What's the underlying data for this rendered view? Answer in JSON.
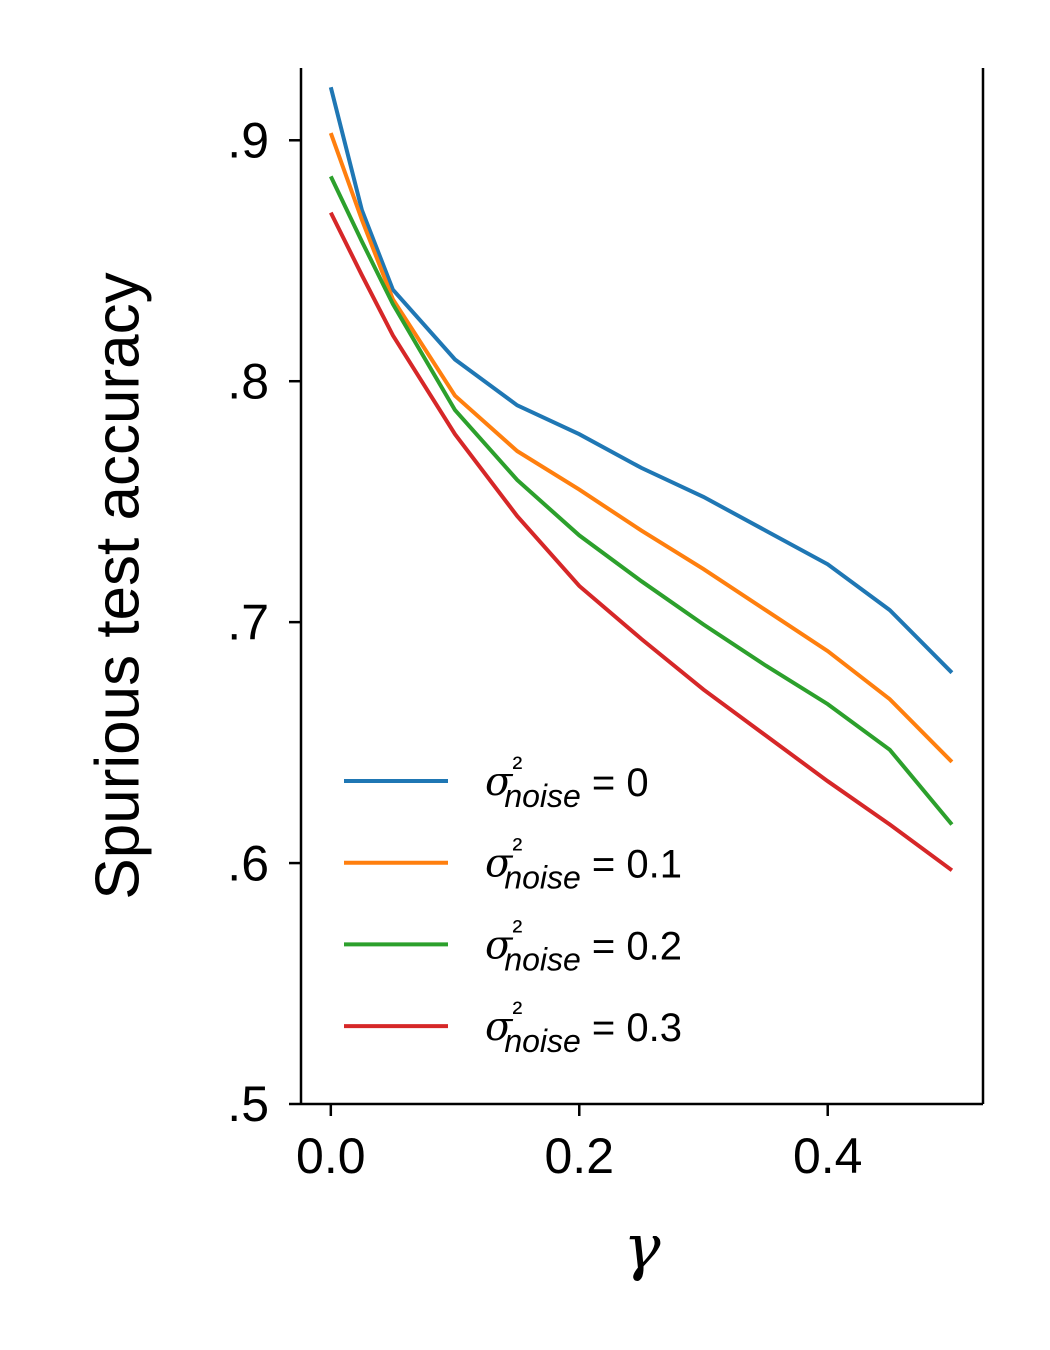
{
  "chart_data": {
    "type": "line",
    "ylabel": "Spurious test accuracy",
    "xlabel": "γ",
    "x": [
      0,
      0.025,
      0.05,
      0.1,
      0.15,
      0.2,
      0.25,
      0.3,
      0.35,
      0.4,
      0.45,
      0.5
    ],
    "series": [
      {
        "name": "σ²noise = 0",
        "color": "#1f77b4",
        "values": [
          0.922,
          0.871,
          0.838,
          0.809,
          0.79,
          0.778,
          0.764,
          0.752,
          0.738,
          0.724,
          0.705,
          0.679
        ]
      },
      {
        "name": "σ²noise = 0.1",
        "color": "#ff7f0e",
        "values": [
          0.903,
          0.867,
          0.834,
          0.794,
          0.771,
          0.755,
          0.738,
          0.722,
          0.705,
          0.688,
          0.668,
          0.642
        ]
      },
      {
        "name": "σ²noise = 0.2",
        "color": "#2ca02c",
        "values": [
          0.885,
          0.858,
          0.832,
          0.788,
          0.759,
          0.736,
          0.717,
          0.699,
          0.682,
          0.666,
          0.647,
          0.616
        ]
      },
      {
        "name": "σ²noise = 0.3",
        "color": "#d62728",
        "values": [
          0.87,
          0.844,
          0.819,
          0.778,
          0.744,
          0.715,
          0.693,
          0.672,
          0.653,
          0.634,
          0.616,
          0.597
        ]
      }
    ],
    "xlim": [
      -0.024,
      0.525
    ],
    "ylim": [
      0.5,
      0.93
    ],
    "xticks": [
      {
        "value": 0,
        "label": "0.0"
      },
      0.2,
      0.4
    ],
    "yticks": [
      {
        "value": 0.5,
        "label": ".5"
      },
      {
        "value": 0.6,
        "label": ".6"
      },
      {
        "value": 0.7,
        "label": ".7"
      },
      {
        "value": 0.8,
        "label": ".8"
      },
      {
        "value": 0.9,
        "label": ".9"
      }
    ],
    "legend": "lower left"
  }
}
